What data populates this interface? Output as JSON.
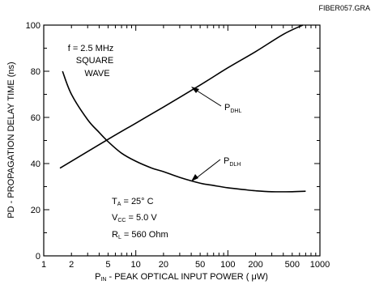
{
  "figure_id": "FIBER057.GRA",
  "chart_data": {
    "type": "line",
    "x_scale": "log",
    "xlim": [
      1,
      1000
    ],
    "ylim": [
      0,
      100
    ],
    "grid": false,
    "legend": "none",
    "xlabel": {
      "prefix": "P",
      "sub": "IN",
      "rest": " - PEAK OPTICAL INPUT POWER ( μW)"
    },
    "ylabel": "PD - PROPAGATION DELAY TIME (ns)",
    "x_ticks": [
      1,
      2,
      5,
      10,
      20,
      50,
      100,
      200,
      500,
      1000
    ],
    "x_tick_labels": [
      "1",
      "2",
      "5",
      "10",
      "20",
      "50",
      "100",
      "200",
      "500",
      "1000"
    ],
    "y_ticks": [
      0,
      20,
      40,
      60,
      80,
      100
    ],
    "y_tick_labels": [
      "0",
      "20",
      "40",
      "60",
      "80",
      "100"
    ],
    "series": [
      {
        "id": "pdhl",
        "label_main": "P",
        "label_sub": "DHL",
        "color": "#000000",
        "x": [
          1.5,
          5,
          10,
          20,
          50,
          100,
          200,
          400,
          650
        ],
        "y": [
          38,
          50.5,
          57.5,
          64.5,
          74,
          81.5,
          88.5,
          96,
          100
        ]
      },
      {
        "id": "pdlh",
        "label_main": "P",
        "label_sub": "DLH",
        "color": "#000000",
        "x": [
          1.6,
          2,
          3,
          4,
          5,
          7,
          10,
          15,
          20,
          30,
          50,
          70,
          100,
          150,
          200,
          300,
          500,
          700
        ],
        "y": [
          80,
          70,
          59,
          53.5,
          49.5,
          44.5,
          41,
          38,
          36.5,
          34,
          31.5,
          30.5,
          29.5,
          28.7,
          28.2,
          27.8,
          27.8,
          28
        ]
      }
    ],
    "annotations": {
      "condition": [
        "f = 2.5 MHz",
        "SQUARE",
        "WAVE"
      ],
      "ta": {
        "main": "T",
        "sub": "A",
        "rest": " = 25° C"
      },
      "vcc": {
        "main": "V",
        "sub": "CC",
        "rest": " = 5.0 V"
      },
      "rl": {
        "main": "R",
        "sub": "L",
        "rest": " = 560 Ohm"
      }
    }
  }
}
